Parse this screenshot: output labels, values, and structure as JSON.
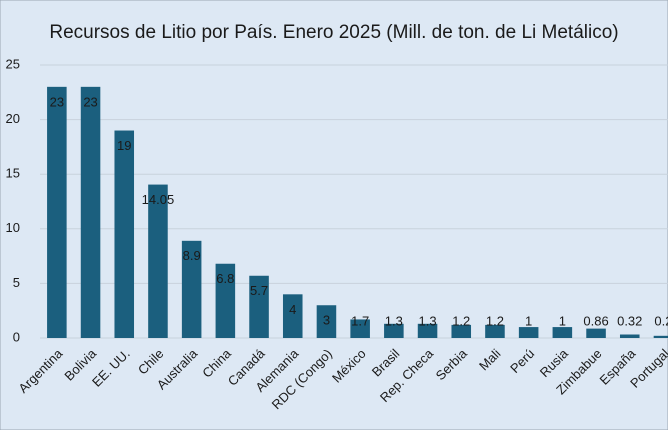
{
  "chart_data": {
    "type": "bar",
    "title": "Recursos de Litio por País. Enero 2025 (Mill. de ton. de  Li Metálico)",
    "categories": [
      "Argentina",
      "Bolivia",
      "EE. UU.",
      "Chile",
      "Australia",
      "China",
      "Canadá",
      "Alemania",
      "RDC (Congo)",
      "México",
      "Brasil",
      "Rep. Checa",
      "Serbia",
      "Mali",
      "Perú",
      "Rusia",
      "Zimbabue",
      "España",
      "Portugal"
    ],
    "values": [
      23,
      23,
      19,
      14.05,
      8.9,
      6.8,
      5.7,
      4,
      3,
      1.7,
      1.3,
      1.3,
      1.2,
      1.2,
      1,
      1,
      0.86,
      0.32,
      0.2
    ],
    "color": "#1b5f7e",
    "ylim": [
      0,
      25
    ],
    "yticks": [
      0,
      5,
      10,
      15,
      20,
      25
    ],
    "grid": true
  }
}
